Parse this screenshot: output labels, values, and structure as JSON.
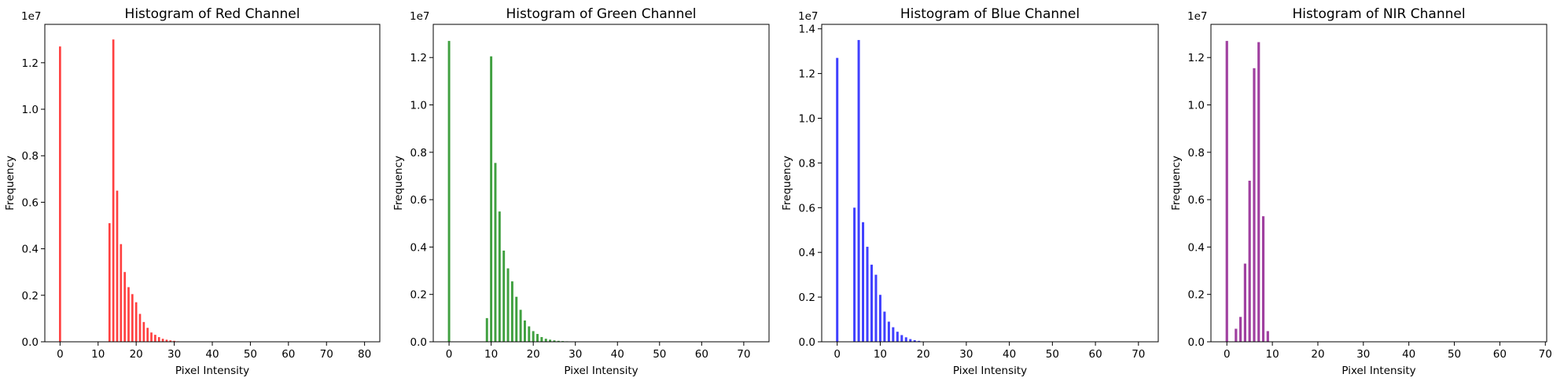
{
  "chart_data": [
    {
      "type": "bar",
      "title": "Histogram of Red Channel",
      "xlabel": "Pixel Intensity",
      "ylabel": "Frequency",
      "y_offset_label": "1e7",
      "color": "#ff0000",
      "xlim": [
        -4,
        84
      ],
      "ylim": [
        0,
        1.365
      ],
      "xticks": [
        0,
        10,
        20,
        30,
        40,
        50,
        60,
        70,
        80
      ],
      "yticks": [
        0.0,
        0.2,
        0.4,
        0.6,
        0.8,
        1.0,
        1.2
      ],
      "ytick_labels": [
        "0.0",
        "0.2",
        "0.4",
        "0.6",
        "0.8",
        "1.0",
        "1.2"
      ],
      "x": [
        0,
        13,
        14,
        15,
        16,
        17,
        18,
        19,
        20,
        21,
        22,
        23,
        24,
        25,
        26,
        27,
        28,
        29,
        30,
        31,
        32,
        33
      ],
      "values": [
        1.27,
        0.51,
        1.3,
        0.65,
        0.42,
        0.3,
        0.235,
        0.205,
        0.17,
        0.12,
        0.085,
        0.06,
        0.04,
        0.03,
        0.02,
        0.013,
        0.009,
        0.006,
        0.004,
        0.002,
        0.0015,
        0.001
      ]
    },
    {
      "type": "bar",
      "title": "Histogram of Green Channel",
      "xlabel": "Pixel Intensity",
      "ylabel": "Frequency",
      "y_offset_label": "1e7",
      "color": "#008000",
      "xlim": [
        -3.75,
        76
      ],
      "ylim": [
        0,
        1.34
      ],
      "xticks": [
        0,
        10,
        20,
        30,
        40,
        50,
        60,
        70
      ],
      "yticks": [
        0.0,
        0.2,
        0.4,
        0.6,
        0.8,
        1.0,
        1.2
      ],
      "ytick_labels": [
        "0.0",
        "0.2",
        "0.4",
        "0.6",
        "0.8",
        "1.0",
        "1.2"
      ],
      "x": [
        0,
        9,
        10,
        11,
        12,
        13,
        14,
        15,
        16,
        17,
        18,
        19,
        20,
        21,
        22,
        23,
        24,
        25,
        26,
        27,
        28,
        29
      ],
      "values": [
        1.27,
        0.1,
        1.205,
        0.755,
        0.55,
        0.385,
        0.31,
        0.255,
        0.19,
        0.135,
        0.09,
        0.065,
        0.045,
        0.033,
        0.02,
        0.013,
        0.009,
        0.006,
        0.004,
        0.003,
        0.002,
        0.001
      ]
    },
    {
      "type": "bar",
      "title": "Histogram of Blue Channel",
      "xlabel": "Pixel Intensity",
      "ylabel": "Frequency",
      "y_offset_label": "1e7",
      "color": "#0000ff",
      "xlim": [
        -3.6,
        74.6
      ],
      "ylim": [
        0,
        1.42
      ],
      "xticks": [
        0,
        10,
        20,
        30,
        40,
        50,
        60,
        70
      ],
      "yticks": [
        0.0,
        0.2,
        0.4,
        0.6,
        0.8,
        1.0,
        1.2,
        1.4
      ],
      "ytick_labels": [
        "0.0",
        "0.2",
        "0.4",
        "0.6",
        "0.8",
        "1.0",
        "1.2",
        "1.4"
      ],
      "x": [
        0,
        4,
        5,
        6,
        7,
        8,
        9,
        10,
        11,
        12,
        13,
        14,
        15,
        16,
        17,
        18,
        19
      ],
      "values": [
        1.27,
        0.6,
        1.35,
        0.535,
        0.425,
        0.345,
        0.3,
        0.21,
        0.135,
        0.09,
        0.065,
        0.045,
        0.03,
        0.02,
        0.012,
        0.007,
        0.004
      ]
    },
    {
      "type": "bar",
      "title": "Histogram of NIR Channel",
      "xlabel": "Pixel Intensity",
      "ylabel": "Frequency",
      "y_offset_label": "1e7",
      "color": "#800080",
      "xlim": [
        -3.5,
        70.3
      ],
      "ylim": [
        0,
        1.34
      ],
      "xticks": [
        0,
        10,
        20,
        30,
        40,
        50,
        60,
        70
      ],
      "yticks": [
        0.0,
        0.2,
        0.4,
        0.6,
        0.8,
        1.0,
        1.2
      ],
      "ytick_labels": [
        "0.0",
        "0.2",
        "0.4",
        "0.6",
        "0.8",
        "1.0",
        "1.2"
      ],
      "x": [
        0,
        2,
        3,
        4,
        5,
        6,
        7,
        8,
        9
      ],
      "values": [
        1.27,
        0.055,
        0.105,
        0.33,
        0.68,
        1.155,
        1.265,
        0.53,
        0.045
      ]
    }
  ]
}
